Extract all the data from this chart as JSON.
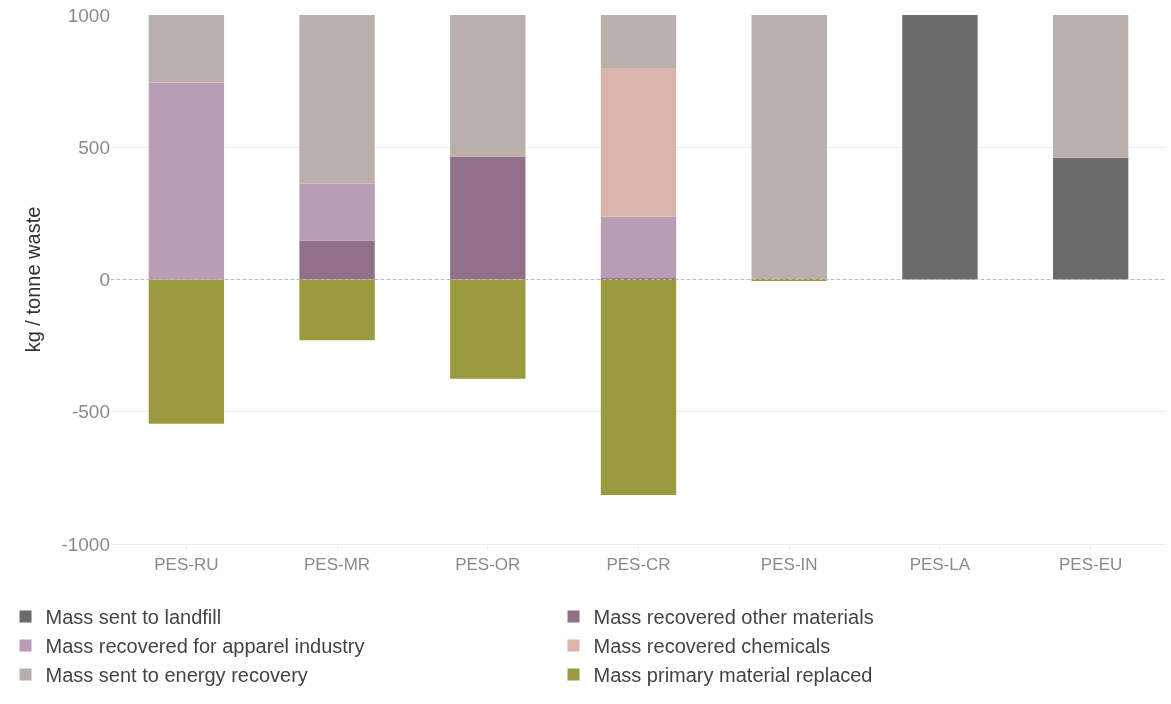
{
  "chart_data": {
    "type": "bar",
    "stacked": true,
    "ylabel": "kg / tonne waste",
    "categories": [
      "PES-RU",
      "PES-MR",
      "PES-OR",
      "PES-CR",
      "PES-IN",
      "PES-LA",
      "PES-EU"
    ],
    "series": [
      {
        "name": "Mass sent to landfill",
        "color": "#6b6b6b",
        "values": [
          null,
          null,
          null,
          null,
          null,
          1000,
          460
        ]
      },
      {
        "name": "Mass recovered other materials",
        "color": "#917089",
        "values": [
          null,
          147,
          465,
          5,
          null,
          null,
          null
        ]
      },
      {
        "name": "Mass recovered for apparel industry",
        "color": "#b99db4",
        "values": [
          745,
          216,
          null,
          232,
          null,
          null,
          null
        ]
      },
      {
        "name": "Mass recovered chemicals",
        "color": "#dbb4ac",
        "values": [
          null,
          null,
          null,
          560,
          null,
          null,
          null
        ]
      },
      {
        "name": "Mass sent to energy recovery",
        "color": "#b9b0ac",
        "values": [
          255,
          637,
          535,
          203,
          1000,
          null,
          540
        ]
      },
      {
        "name": "Mass primary material replaced",
        "color": "#9c9a3f",
        "values": [
          -545,
          -230,
          -375,
          -815,
          -5,
          null,
          null
        ]
      }
    ],
    "ylim": [
      -1000,
      1000
    ],
    "yticks": [
      -1000,
      -500,
      0,
      500,
      1000
    ],
    "grid": "y",
    "legend": "bottom",
    "ref_lines": [
      {
        "axis": "y",
        "value": 0,
        "color": "#bbbbbb",
        "line_style": "dotted"
      }
    ]
  }
}
